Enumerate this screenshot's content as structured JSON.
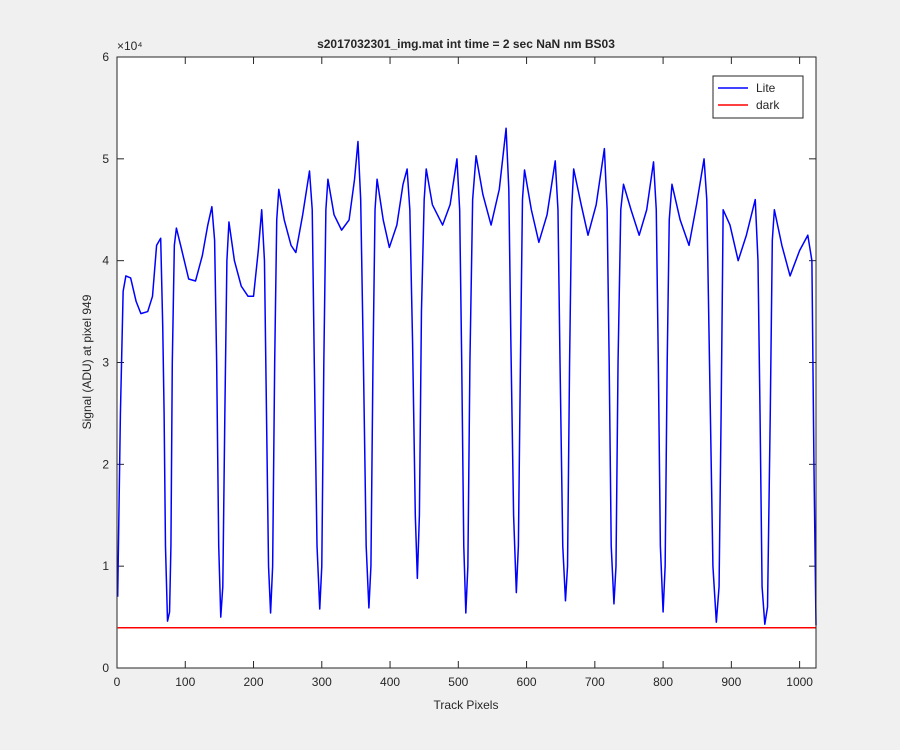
{
  "chart_data": {
    "type": "line",
    "title": "s2017032301_img.mat int time = 2 sec  NaN nm BS03",
    "xlabel": "Track Pixels",
    "ylabel": "Signal (ADU) at pixel 949",
    "y_exponent": "×10⁴",
    "xlim": [
      0,
      1024
    ],
    "xticks": [
      0,
      100,
      200,
      300,
      400,
      500,
      600,
      700,
      800,
      900,
      1000
    ],
    "ylim": [
      0,
      60000
    ],
    "yticks": [
      0,
      {
        "value": 10000,
        "label": "1"
      },
      {
        "value": 20000,
        "label": "2"
      },
      {
        "value": 30000,
        "label": "3"
      },
      {
        "value": 40000,
        "label": "4"
      },
      {
        "value": 50000,
        "label": "5"
      },
      {
        "value": 60000,
        "label": "6"
      }
    ],
    "legend": "upper right",
    "series": [
      {
        "name": "Lite",
        "color": "#0000ff",
        "x": [
          1,
          5,
          9,
          13,
          20,
          28,
          35,
          45,
          52,
          58,
          64,
          67,
          69,
          71,
          74,
          77,
          79,
          81,
          84,
          87,
          95,
          105,
          115,
          125,
          133,
          139,
          143,
          146,
          149,
          152,
          155,
          158,
          161,
          164,
          172,
          182,
          192,
          200,
          207,
          212,
          216,
          219,
          222,
          225,
          228,
          231,
          234,
          237,
          245,
          255,
          262,
          272,
          282,
          286,
          289,
          293,
          297,
          300,
          303,
          306,
          309,
          318,
          329,
          340,
          348,
          353,
          357,
          361,
          365,
          369,
          372,
          375,
          378,
          381,
          390,
          399,
          410,
          419,
          425,
          429,
          433,
          437,
          440,
          443,
          446,
          450,
          453,
          462,
          477,
          488,
          498,
          502,
          505,
          508,
          511,
          514,
          517,
          521,
          526,
          536,
          548,
          560,
          570,
          574,
          577,
          581,
          585,
          588,
          591,
          594,
          597,
          607,
          618,
          630,
          642,
          646,
          649,
          653,
          657,
          660,
          663,
          666,
          669,
          680,
          690,
          702,
          714,
          718,
          721,
          724,
          728,
          731,
          734,
          738,
          742,
          753,
          765,
          776,
          786,
          790,
          793,
          796,
          800,
          803,
          806,
          809,
          813,
          825,
          838,
          849,
          860,
          864,
          868,
          873,
          878,
          882,
          885,
          888,
          898,
          910,
          922,
          935,
          939,
          942,
          945,
          949,
          953,
          957,
          960,
          963,
          974,
          986,
          1000,
          1012,
          1018,
          1021,
          1024
        ],
        "values": [
          7000,
          25000,
          37000,
          38500,
          38300,
          36000,
          34800,
          35000,
          36500,
          41500,
          42200,
          33500,
          25000,
          12000,
          4600,
          5500,
          12000,
          30000,
          41500,
          43200,
          41000,
          38200,
          38000,
          40500,
          43500,
          45300,
          42000,
          30000,
          12000,
          5000,
          8000,
          25000,
          40000,
          43800,
          40000,
          37500,
          36500,
          36500,
          41000,
          45000,
          40000,
          25000,
          10000,
          5400,
          10000,
          30000,
          44000,
          47000,
          44000,
          41500,
          40800,
          44500,
          48800,
          45000,
          30000,
          12000,
          5800,
          10000,
          30000,
          45000,
          48000,
          44500,
          43000,
          44000,
          48000,
          51700,
          46000,
          30000,
          12000,
          5900,
          10000,
          30000,
          45000,
          48000,
          44000,
          41300,
          43500,
          47500,
          49000,
          45000,
          32000,
          15000,
          8800,
          15000,
          35000,
          46000,
          49000,
          45500,
          43500,
          45500,
          50000,
          45000,
          30000,
          12000,
          5400,
          10000,
          30000,
          46000,
          50300,
          46500,
          43500,
          47000,
          53000,
          47000,
          32000,
          15000,
          7400,
          12000,
          30000,
          46000,
          48900,
          45000,
          41800,
          44500,
          49800,
          45000,
          30000,
          12000,
          6600,
          10000,
          30000,
          45000,
          49000,
          45500,
          42500,
          45500,
          51000,
          45000,
          30000,
          12000,
          6300,
          10000,
          30000,
          45000,
          47500,
          45000,
          42500,
          45000,
          49700,
          45000,
          30000,
          12000,
          5500,
          10000,
          30000,
          44000,
          47500,
          44000,
          41500,
          45500,
          50000,
          46000,
          30000,
          10000,
          4500,
          8000,
          25000,
          45000,
          43500,
          40000,
          42500,
          46000,
          40000,
          25000,
          8000,
          4300,
          6000,
          25000,
          42000,
          45000,
          41500,
          38500,
          41000,
          42500,
          40000,
          20000,
          4200
        ]
      },
      {
        "name": "dark",
        "color": "#ff0000",
        "x": [
          1,
          1024
        ],
        "values": [
          3950,
          3950
        ]
      }
    ]
  }
}
